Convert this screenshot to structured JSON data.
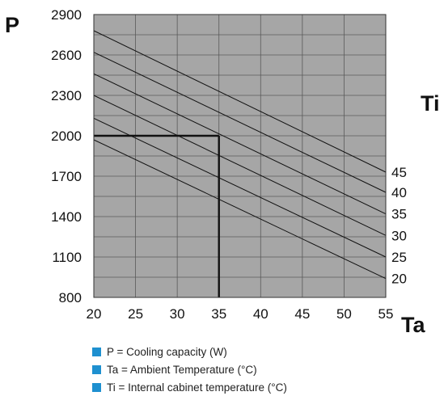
{
  "chart_data": {
    "type": "line",
    "ylabel": "P",
    "xlabel": "Ta",
    "series_axis_label": "Ti",
    "xlim": [
      20,
      55
    ],
    "ylim": [
      800,
      2900
    ],
    "x_ticks": [
      20,
      25,
      30,
      35,
      40,
      45,
      50,
      55
    ],
    "y_ticks": [
      800,
      1100,
      1400,
      1700,
      2000,
      2300,
      2600,
      2900
    ],
    "series": [
      {
        "label": "45",
        "x": [
          20,
          55
        ],
        "y": [
          2780,
          1730
        ]
      },
      {
        "label": "40",
        "x": [
          20,
          55
        ],
        "y": [
          2620,
          1580
        ]
      },
      {
        "label": "35",
        "x": [
          20,
          55
        ],
        "y": [
          2460,
          1420
        ]
      },
      {
        "label": "30",
        "x": [
          20,
          55
        ],
        "y": [
          2300,
          1260
        ]
      },
      {
        "label": "25",
        "x": [
          20,
          55
        ],
        "y": [
          2130,
          1100
        ]
      },
      {
        "label": "20",
        "x": [
          20,
          55
        ],
        "y": [
          1970,
          940
        ]
      }
    ],
    "example_reading": {
      "x": 35,
      "y": 2000
    },
    "grid": true,
    "plot_background": "#a6a6a6",
    "grid_color": "#5a5a5a",
    "line_color": "#111111",
    "legend_color": "#1e90d0",
    "legend": [
      "P = Cooling capacity (W)",
      "Ta = Ambient Temperature (°C)",
      "Ti = Internal cabinet temperature (°C)"
    ]
  }
}
